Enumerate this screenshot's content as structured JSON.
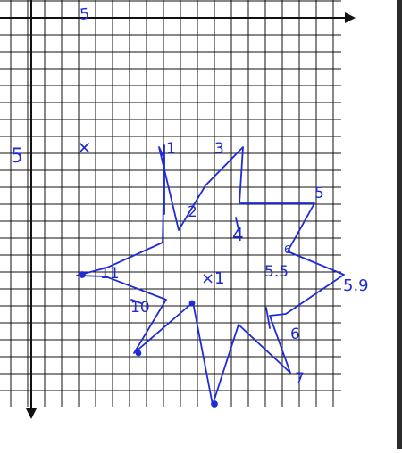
{
  "colors": {
    "grid": "#111111",
    "axis": "#111111",
    "ink": "#1f2bd6",
    "background": "#ffffff",
    "edge_bar": "#2b2b2b"
  },
  "labels": {
    "top_axis_mark": "5",
    "left_axis_mark": "5",
    "origin_marker": "×",
    "center_marker": "×1",
    "point_1": "1",
    "point_2": "2",
    "point_3": "3",
    "point_4": "4",
    "point_5": "5",
    "point_6": "6",
    "point_5_5": "5.5",
    "point_5_9": "5.9",
    "point_6_low": "6",
    "point_7": "7",
    "point_10": "10",
    "point_11": "11"
  }
}
